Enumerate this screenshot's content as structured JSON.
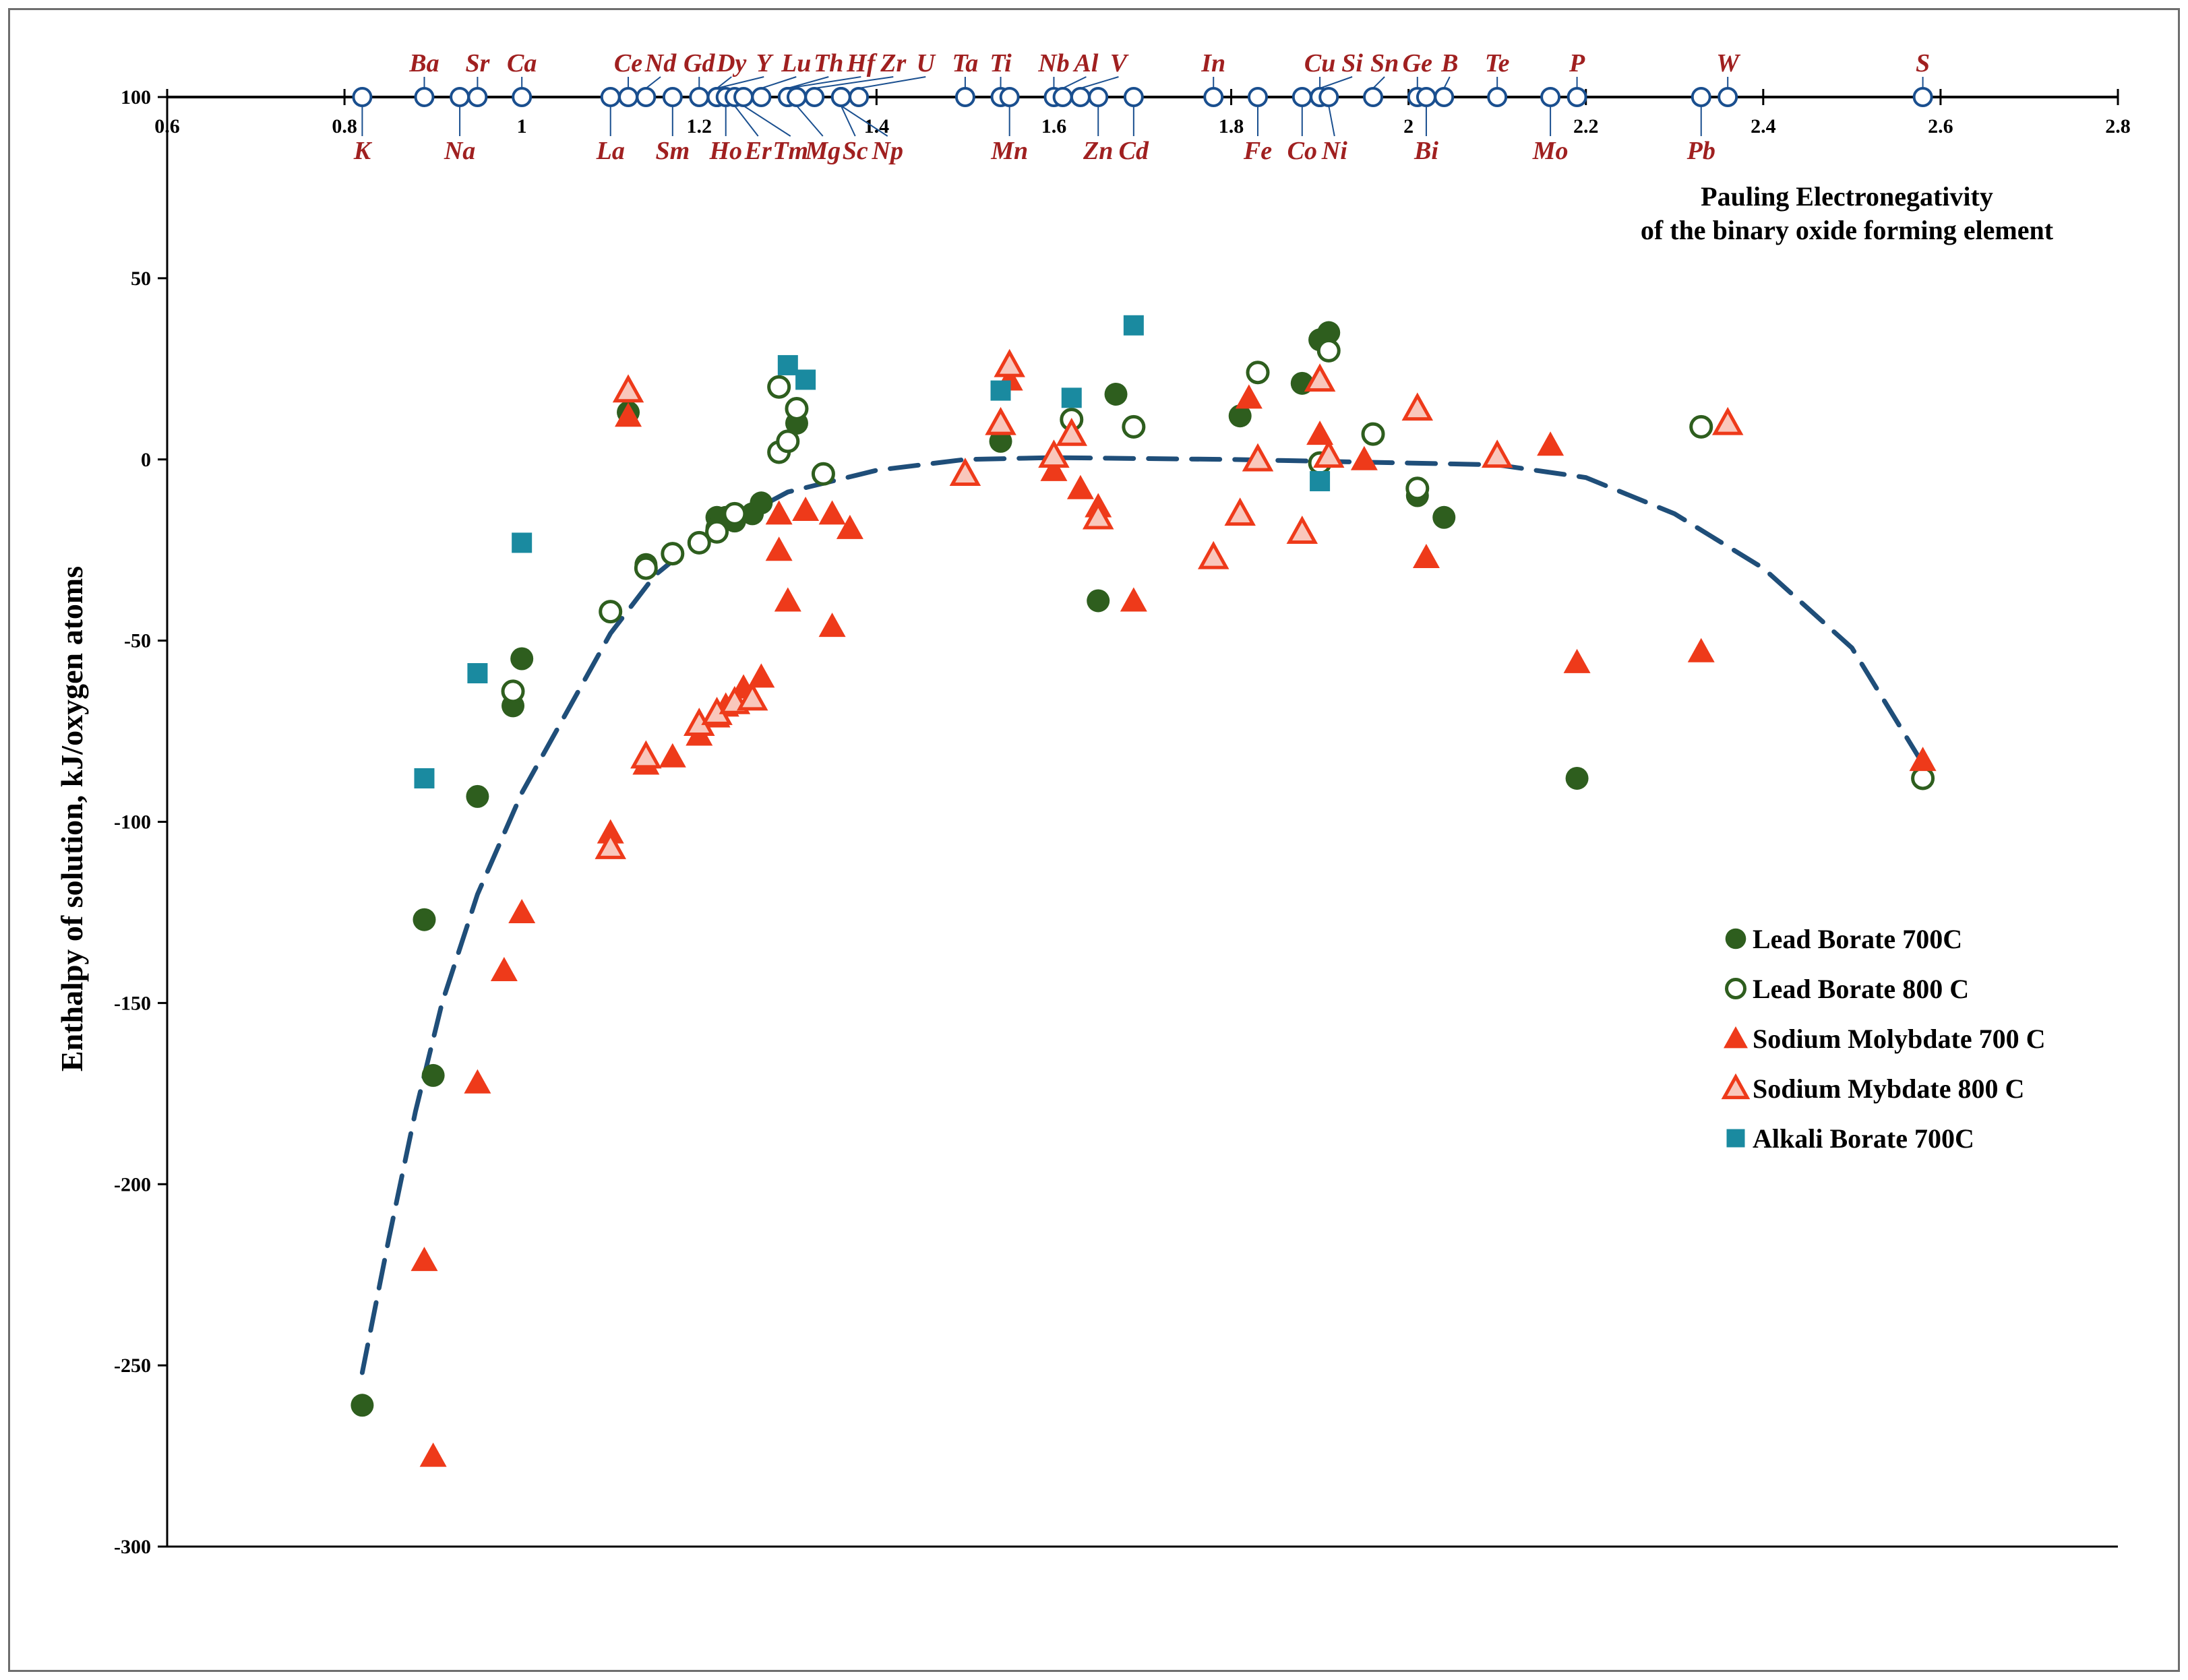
{
  "chart_data": {
    "type": "scatter",
    "title": "Pauling Electronegativity of the binary oxide forming element",
    "title_lines": [
      "Pauling Electronegativity",
      "of the binary oxide forming element"
    ],
    "xlabel": "Pauling Electronegativity of the binary oxide forming element",
    "ylabel": "Enthalpy of solution, kJ/oxygen atoms",
    "xlim": [
      0.6,
      2.8
    ],
    "ylim": [
      -300,
      100
    ],
    "xticks": [
      0.6,
      0.8,
      1,
      1.2,
      1.4,
      1.6,
      1.8,
      2,
      2.2,
      2.4,
      2.6,
      2.8
    ],
    "xtick_labels": [
      "0.6",
      "0.8",
      "1",
      "1.2",
      "1.4",
      "1.6",
      "1.8",
      "2",
      "2.2",
      "2.4",
      "2.6",
      "2.8"
    ],
    "yticks": [
      100,
      50,
      0,
      -50,
      -100,
      -150,
      -200,
      -250,
      -300
    ],
    "ytick_labels": [
      "100",
      "50",
      "0",
      "-50",
      "-100",
      "-150",
      "-200",
      "-250",
      "-300"
    ],
    "grid": false,
    "legend_position": "right",
    "colors": {
      "lead_borate": "#2e5e1e",
      "molybdate": "#ee3a1a",
      "molybdate_fill_800": "#f9c7bc",
      "alkali": "#1a8aa0",
      "element_marker": "#1a4f8f",
      "element_label": "#a02020",
      "fit_line": "#1f4e79"
    },
    "elements": [
      {
        "name": "K",
        "en": 0.82,
        "pos": "below"
      },
      {
        "name": "Ba",
        "en": 0.89,
        "pos": "above"
      },
      {
        "name": "Na",
        "en": 0.93,
        "pos": "below"
      },
      {
        "name": "Sr",
        "en": 0.95,
        "pos": "above"
      },
      {
        "name": "Ca",
        "en": 1.0,
        "pos": "above"
      },
      {
        "name": "La",
        "en": 1.1,
        "pos": "below"
      },
      {
        "name": "Ce",
        "en": 1.12,
        "pos": "above"
      },
      {
        "name": "Nd",
        "en": 1.14,
        "pos": "above"
      },
      {
        "name": "Sm",
        "en": 1.17,
        "pos": "below"
      },
      {
        "name": "Gd",
        "en": 1.2,
        "pos": "above"
      },
      {
        "name": "Dy",
        "en": 1.22,
        "pos": "above"
      },
      {
        "name": "Y",
        "en": 1.22,
        "pos": "above"
      },
      {
        "name": "Ho",
        "en": 1.23,
        "pos": "below"
      },
      {
        "name": "Er",
        "en": 1.24,
        "pos": "below"
      },
      {
        "name": "Tm",
        "en": 1.25,
        "pos": "below"
      },
      {
        "name": "Lu",
        "en": 1.27,
        "pos": "above"
      },
      {
        "name": "Th",
        "en": 1.3,
        "pos": "above"
      },
      {
        "name": "Hf",
        "en": 1.3,
        "pos": "above"
      },
      {
        "name": "Mg",
        "en": 1.31,
        "pos": "below"
      },
      {
        "name": "Zr",
        "en": 1.33,
        "pos": "above"
      },
      {
        "name": "Sc",
        "en": 1.36,
        "pos": "below"
      },
      {
        "name": "U",
        "en": 1.38,
        "pos": "above"
      },
      {
        "name": "Np",
        "en": 1.36,
        "pos": "below"
      },
      {
        "name": "Ta",
        "en": 1.5,
        "pos": "above"
      },
      {
        "name": "Ti",
        "en": 1.54,
        "pos": "above"
      },
      {
        "name": "Mn",
        "en": 1.55,
        "pos": "below"
      },
      {
        "name": "Nb",
        "en": 1.6,
        "pos": "above"
      },
      {
        "name": "Al",
        "en": 1.61,
        "pos": "above"
      },
      {
        "name": "V",
        "en": 1.63,
        "pos": "above"
      },
      {
        "name": "Zn",
        "en": 1.65,
        "pos": "below"
      },
      {
        "name": "Cd",
        "en": 1.69,
        "pos": "below"
      },
      {
        "name": "In",
        "en": 1.78,
        "pos": "above"
      },
      {
        "name": "Fe",
        "en": 1.83,
        "pos": "below"
      },
      {
        "name": "Cu",
        "en": 1.9,
        "pos": "above"
      },
      {
        "name": "Co",
        "en": 1.88,
        "pos": "below"
      },
      {
        "name": "Si",
        "en": 1.9,
        "pos": "above"
      },
      {
        "name": "Ni",
        "en": 1.91,
        "pos": "below"
      },
      {
        "name": "Sn",
        "en": 1.96,
        "pos": "above"
      },
      {
        "name": "Ge",
        "en": 2.01,
        "pos": "above"
      },
      {
        "name": "Bi",
        "en": 2.02,
        "pos": "below"
      },
      {
        "name": "B",
        "en": 2.04,
        "pos": "above"
      },
      {
        "name": "Te",
        "en": 2.1,
        "pos": "above"
      },
      {
        "name": "Mo",
        "en": 2.16,
        "pos": "below"
      },
      {
        "name": "P",
        "en": 2.19,
        "pos": "above"
      },
      {
        "name": "Pb",
        "en": 2.33,
        "pos": "below"
      },
      {
        "name": "W",
        "en": 2.36,
        "pos": "above"
      },
      {
        "name": "S",
        "en": 2.58,
        "pos": "above"
      }
    ],
    "series": [
      {
        "name": "Lead Borate 700C",
        "marker": "circle-filled",
        "points": [
          [
            0.82,
            -261
          ],
          [
            0.89,
            -127
          ],
          [
            0.9,
            -170
          ],
          [
            0.95,
            -93
          ],
          [
            0.99,
            -68
          ],
          [
            1.0,
            -55
          ],
          [
            1.12,
            13
          ],
          [
            1.14,
            -29
          ],
          [
            1.22,
            -16
          ],
          [
            1.22,
            -19
          ],
          [
            1.23,
            -16
          ],
          [
            1.24,
            -17
          ],
          [
            1.26,
            -15
          ],
          [
            1.27,
            -12
          ],
          [
            1.31,
            10
          ],
          [
            1.54,
            5
          ],
          [
            1.65,
            -39
          ],
          [
            1.67,
            18
          ],
          [
            1.81,
            12
          ],
          [
            1.88,
            21
          ],
          [
            1.9,
            33
          ],
          [
            1.91,
            35
          ],
          [
            2.01,
            -10
          ],
          [
            2.04,
            -16
          ],
          [
            2.19,
            -88
          ]
        ]
      },
      {
        "name": "Lead Borate 800 C",
        "marker": "circle-open",
        "points": [
          [
            0.99,
            -64
          ],
          [
            1.1,
            -42
          ],
          [
            1.14,
            -30
          ],
          [
            1.17,
            -26
          ],
          [
            1.2,
            -23
          ],
          [
            1.22,
            -20
          ],
          [
            1.24,
            -15
          ],
          [
            1.29,
            2
          ],
          [
            1.3,
            5
          ],
          [
            1.29,
            20
          ],
          [
            1.31,
            14
          ],
          [
            1.34,
            -4
          ],
          [
            1.62,
            11
          ],
          [
            1.69,
            9
          ],
          [
            1.83,
            24
          ],
          [
            1.9,
            -1
          ],
          [
            1.91,
            30
          ],
          [
            1.96,
            7
          ],
          [
            2.01,
            -8
          ],
          [
            2.33,
            9
          ],
          [
            2.58,
            -88
          ]
        ]
      },
      {
        "name": "Sodium Molybdate 700 C",
        "marker": "triangle-filled",
        "points": [
          [
            0.89,
            -221
          ],
          [
            0.9,
            -275
          ],
          [
            0.95,
            -172
          ],
          [
            0.98,
            -141
          ],
          [
            1.0,
            -125
          ],
          [
            1.1,
            -103
          ],
          [
            1.12,
            12
          ],
          [
            1.14,
            -84
          ],
          [
            1.17,
            -82
          ],
          [
            1.2,
            -76
          ],
          [
            1.22,
            -71
          ],
          [
            1.23,
            -68
          ],
          [
            1.25,
            -63
          ],
          [
            1.27,
            -60
          ],
          [
            1.29,
            -15
          ],
          [
            1.29,
            -25
          ],
          [
            1.3,
            -39
          ],
          [
            1.32,
            -14
          ],
          [
            1.35,
            -15
          ],
          [
            1.37,
            -19
          ],
          [
            1.35,
            -46
          ],
          [
            1.55,
            22
          ],
          [
            1.6,
            -3
          ],
          [
            1.63,
            -8
          ],
          [
            1.65,
            -13
          ],
          [
            1.69,
            -39
          ],
          [
            1.82,
            17
          ],
          [
            1.9,
            7
          ],
          [
            1.95,
            0
          ],
          [
            2.02,
            -27
          ],
          [
            2.16,
            4
          ],
          [
            2.19,
            -56
          ],
          [
            2.33,
            -53
          ],
          [
            2.58,
            -83
          ]
        ]
      },
      {
        "name": "Sodium Mybdate 800 C",
        "marker": "triangle-open",
        "points": [
          [
            1.1,
            -107
          ],
          [
            1.12,
            19
          ],
          [
            1.14,
            -82
          ],
          [
            1.2,
            -73
          ],
          [
            1.22,
            -70
          ],
          [
            1.24,
            -67
          ],
          [
            1.26,
            -66
          ],
          [
            1.5,
            -4
          ],
          [
            1.54,
            10
          ],
          [
            1.55,
            26
          ],
          [
            1.6,
            1
          ],
          [
            1.62,
            7
          ],
          [
            1.65,
            -16
          ],
          [
            1.78,
            -27
          ],
          [
            1.81,
            -15
          ],
          [
            1.83,
            0
          ],
          [
            1.88,
            -20
          ],
          [
            1.9,
            22
          ],
          [
            1.91,
            1
          ],
          [
            2.01,
            14
          ],
          [
            2.1,
            1
          ],
          [
            2.36,
            10
          ]
        ]
      },
      {
        "name": "Alkali Borate 700C",
        "marker": "square-filled",
        "points": [
          [
            0.89,
            -88
          ],
          [
            0.95,
            -59
          ],
          [
            1.0,
            -23
          ],
          [
            1.3,
            26
          ],
          [
            1.32,
            22
          ],
          [
            1.54,
            19
          ],
          [
            1.62,
            17
          ],
          [
            1.69,
            37
          ],
          [
            1.9,
            -6
          ]
        ]
      }
    ],
    "fit_curve": [
      [
        0.82,
        -252
      ],
      [
        0.85,
        -215
      ],
      [
        0.88,
        -180
      ],
      [
        0.91,
        -150
      ],
      [
        0.95,
        -120
      ],
      [
        1.0,
        -92
      ],
      [
        1.05,
        -70
      ],
      [
        1.1,
        -48
      ],
      [
        1.15,
        -32
      ],
      [
        1.2,
        -22
      ],
      [
        1.3,
        -9
      ],
      [
        1.4,
        -3
      ],
      [
        1.5,
        0
      ],
      [
        1.6,
        0.5
      ],
      [
        1.8,
        0
      ],
      [
        2.0,
        -1
      ],
      [
        2.1,
        -1.5
      ],
      [
        2.2,
        -5
      ],
      [
        2.3,
        -15
      ],
      [
        2.4,
        -30
      ],
      [
        2.5,
        -52
      ],
      [
        2.58,
        -84
      ]
    ]
  }
}
